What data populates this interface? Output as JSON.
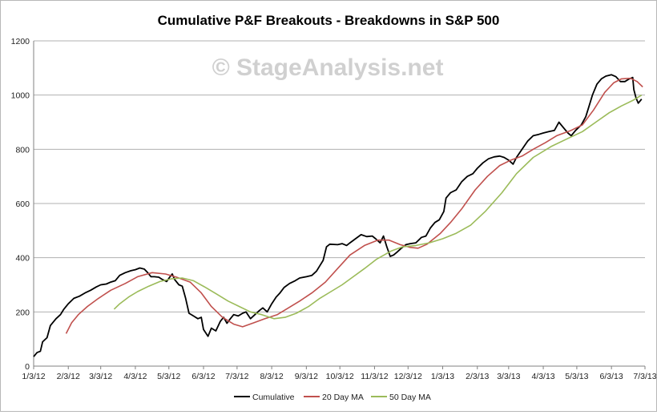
{
  "chart_data": {
    "type": "line",
    "title": "Cumulative P&F Breakouts - Breakdowns in S&P 500",
    "watermark": "© StageAnalysis.net",
    "xlabel": "",
    "ylabel": "",
    "ylim": [
      0,
      1200
    ],
    "yticks": [
      0,
      200,
      400,
      600,
      800,
      1000,
      1200
    ],
    "xlim": [
      "2012-01-03",
      "2013-07-03"
    ],
    "xticks": [
      "1/3/12",
      "2/3/12",
      "3/3/12",
      "4/3/12",
      "5/3/12",
      "6/3/12",
      "7/3/12",
      "8/3/12",
      "9/3/12",
      "10/3/12",
      "11/3/12",
      "12/3/12",
      "1/3/13",
      "2/3/13",
      "3/3/13",
      "4/3/13",
      "5/3/13",
      "6/3/13",
      "7/3/13"
    ],
    "grid": true,
    "legend_position": "bottom",
    "series": [
      {
        "name": "Cumulative",
        "color": "#000000",
        "points": [
          [
            "2012-01-03",
            35
          ],
          [
            "2012-01-06",
            50
          ],
          [
            "2012-01-09",
            55
          ],
          [
            "2012-01-11",
            90
          ],
          [
            "2012-01-15",
            105
          ],
          [
            "2012-01-18",
            150
          ],
          [
            "2012-01-23",
            175
          ],
          [
            "2012-01-27",
            190
          ],
          [
            "2012-01-30",
            210
          ],
          [
            "2012-02-03",
            230
          ],
          [
            "2012-02-08",
            250
          ],
          [
            "2012-02-13",
            258
          ],
          [
            "2012-02-18",
            270
          ],
          [
            "2012-02-23",
            280
          ],
          [
            "2012-02-28",
            292
          ],
          [
            "2012-03-03",
            300
          ],
          [
            "2012-03-08",
            303
          ],
          [
            "2012-03-12",
            310
          ],
          [
            "2012-03-16",
            315
          ],
          [
            "2012-03-20",
            335
          ],
          [
            "2012-03-25",
            345
          ],
          [
            "2012-03-30",
            352
          ],
          [
            "2012-04-03",
            356
          ],
          [
            "2012-04-07",
            362
          ],
          [
            "2012-04-11",
            358
          ],
          [
            "2012-04-14",
            345
          ],
          [
            "2012-04-17",
            330
          ],
          [
            "2012-04-20",
            330
          ],
          [
            "2012-04-24",
            328
          ],
          [
            "2012-04-27",
            320
          ],
          [
            "2012-05-01",
            312
          ],
          [
            "2012-05-04",
            330
          ],
          [
            "2012-05-06",
            340
          ],
          [
            "2012-05-08",
            320
          ],
          [
            "2012-05-12",
            300
          ],
          [
            "2012-05-15",
            295
          ],
          [
            "2012-05-18",
            250
          ],
          [
            "2012-05-21",
            195
          ],
          [
            "2012-05-25",
            185
          ],
          [
            "2012-05-29",
            175
          ],
          [
            "2012-06-01",
            180
          ],
          [
            "2012-06-03",
            135
          ],
          [
            "2012-06-07",
            110
          ],
          [
            "2012-06-10",
            140
          ],
          [
            "2012-06-14",
            130
          ],
          [
            "2012-06-18",
            165
          ],
          [
            "2012-06-21",
            180
          ],
          [
            "2012-06-24",
            158
          ],
          [
            "2012-06-27",
            175
          ],
          [
            "2012-06-30",
            190
          ],
          [
            "2012-07-04",
            185
          ],
          [
            "2012-07-08",
            195
          ],
          [
            "2012-07-11",
            200
          ],
          [
            "2012-07-15",
            175
          ],
          [
            "2012-07-19",
            190
          ],
          [
            "2012-07-23",
            205
          ],
          [
            "2012-07-26",
            215
          ],
          [
            "2012-07-30",
            200
          ],
          [
            "2012-08-03",
            230
          ],
          [
            "2012-08-07",
            255
          ],
          [
            "2012-08-10",
            268
          ],
          [
            "2012-08-14",
            290
          ],
          [
            "2012-08-19",
            305
          ],
          [
            "2012-08-24",
            315
          ],
          [
            "2012-08-28",
            325
          ],
          [
            "2012-09-03",
            330
          ],
          [
            "2012-09-08",
            335
          ],
          [
            "2012-09-12",
            350
          ],
          [
            "2012-09-15",
            370
          ],
          [
            "2012-09-18",
            390
          ],
          [
            "2012-09-21",
            440
          ],
          [
            "2012-09-24",
            450
          ],
          [
            "2012-10-01",
            448
          ],
          [
            "2012-10-05",
            452
          ],
          [
            "2012-10-09",
            445
          ],
          [
            "2012-10-12",
            455
          ],
          [
            "2012-10-17",
            470
          ],
          [
            "2012-10-22",
            485
          ],
          [
            "2012-10-27",
            478
          ],
          [
            "2012-11-01",
            480
          ],
          [
            "2012-11-04",
            470
          ],
          [
            "2012-11-08",
            455
          ],
          [
            "2012-11-11",
            480
          ],
          [
            "2012-11-14",
            440
          ],
          [
            "2012-11-17",
            405
          ],
          [
            "2012-11-20",
            410
          ],
          [
            "2012-11-23",
            420
          ],
          [
            "2012-11-27",
            435
          ],
          [
            "2012-12-01",
            448
          ],
          [
            "2012-12-05",
            452
          ],
          [
            "2012-12-10",
            455
          ],
          [
            "2012-12-15",
            475
          ],
          [
            "2012-12-19",
            480
          ],
          [
            "2012-12-23",
            510
          ],
          [
            "2012-12-27",
            530
          ],
          [
            "2012-12-31",
            540
          ],
          [
            "2013-01-04",
            570
          ],
          [
            "2013-01-06",
            620
          ],
          [
            "2013-01-10",
            640
          ],
          [
            "2013-01-15",
            650
          ],
          [
            "2013-01-20",
            680
          ],
          [
            "2013-01-25",
            700
          ],
          [
            "2013-01-30",
            710
          ],
          [
            "2013-02-03",
            730
          ],
          [
            "2013-02-08",
            750
          ],
          [
            "2013-02-13",
            765
          ],
          [
            "2013-02-18",
            772
          ],
          [
            "2013-02-23",
            775
          ],
          [
            "2013-02-27",
            770
          ],
          [
            "2013-03-03",
            760
          ],
          [
            "2013-03-07",
            745
          ],
          [
            "2013-03-10",
            770
          ],
          [
            "2013-03-15",
            800
          ],
          [
            "2013-03-20",
            830
          ],
          [
            "2013-03-25",
            850
          ],
          [
            "2013-03-30",
            855
          ],
          [
            "2013-04-03",
            860
          ],
          [
            "2013-04-08",
            865
          ],
          [
            "2013-04-13",
            870
          ],
          [
            "2013-04-17",
            900
          ],
          [
            "2013-04-21",
            880
          ],
          [
            "2013-04-25",
            860
          ],
          [
            "2013-04-28",
            850
          ],
          [
            "2013-05-02",
            870
          ],
          [
            "2013-05-07",
            890
          ],
          [
            "2013-05-11",
            920
          ],
          [
            "2013-05-14",
            960
          ],
          [
            "2013-05-17",
            1000
          ],
          [
            "2013-05-21",
            1040
          ],
          [
            "2013-05-25",
            1060
          ],
          [
            "2013-05-29",
            1070
          ],
          [
            "2013-06-03",
            1075
          ],
          [
            "2013-06-07",
            1068
          ],
          [
            "2013-06-11",
            1050
          ],
          [
            "2013-06-15",
            1050
          ],
          [
            "2013-06-19",
            1060
          ],
          [
            "2013-06-22",
            1065
          ],
          [
            "2013-06-23",
            1020
          ],
          [
            "2013-06-25",
            990
          ],
          [
            "2013-06-27",
            970
          ],
          [
            "2013-06-30",
            985
          ]
        ]
      },
      {
        "name": "20 Day MA",
        "color": "#c0504d",
        "points": [
          [
            "2012-02-01",
            120
          ],
          [
            "2012-02-06",
            160
          ],
          [
            "2012-02-12",
            190
          ],
          [
            "2012-02-20",
            220
          ],
          [
            "2012-03-01",
            250
          ],
          [
            "2012-03-12",
            280
          ],
          [
            "2012-03-25",
            305
          ],
          [
            "2012-04-05",
            330
          ],
          [
            "2012-04-18",
            345
          ],
          [
            "2012-04-30",
            340
          ],
          [
            "2012-05-10",
            328
          ],
          [
            "2012-05-22",
            310
          ],
          [
            "2012-06-01",
            270
          ],
          [
            "2012-06-10",
            220
          ],
          [
            "2012-06-20",
            180
          ],
          [
            "2012-06-30",
            155
          ],
          [
            "2012-07-08",
            145
          ],
          [
            "2012-07-18",
            160
          ],
          [
            "2012-07-28",
            175
          ],
          [
            "2012-08-08",
            190
          ],
          [
            "2012-08-18",
            215
          ],
          [
            "2012-08-28",
            240
          ],
          [
            "2012-09-08",
            270
          ],
          [
            "2012-09-20",
            310
          ],
          [
            "2012-10-01",
            360
          ],
          [
            "2012-10-12",
            410
          ],
          [
            "2012-10-25",
            445
          ],
          [
            "2012-11-06",
            465
          ],
          [
            "2012-11-16",
            465
          ],
          [
            "2012-11-26",
            448
          ],
          [
            "2012-12-05",
            438
          ],
          [
            "2012-12-12",
            435
          ],
          [
            "2012-12-20",
            450
          ],
          [
            "2013-01-01",
            490
          ],
          [
            "2013-01-10",
            530
          ],
          [
            "2013-01-20",
            580
          ],
          [
            "2013-02-01",
            650
          ],
          [
            "2013-02-12",
            700
          ],
          [
            "2013-02-23",
            740
          ],
          [
            "2013-03-05",
            760
          ],
          [
            "2013-03-15",
            775
          ],
          [
            "2013-03-25",
            800
          ],
          [
            "2013-04-05",
            825
          ],
          [
            "2013-04-15",
            850
          ],
          [
            "2013-04-28",
            870
          ],
          [
            "2013-05-08",
            890
          ],
          [
            "2013-05-18",
            945
          ],
          [
            "2013-05-28",
            1010
          ],
          [
            "2013-06-05",
            1045
          ],
          [
            "2013-06-12",
            1060
          ],
          [
            "2013-06-20",
            1062
          ],
          [
            "2013-06-26",
            1050
          ],
          [
            "2013-07-01",
            1030
          ]
        ]
      },
      {
        "name": "50 Day MA",
        "color": "#9bbb59",
        "points": [
          [
            "2012-03-15",
            210
          ],
          [
            "2012-03-20",
            230
          ],
          [
            "2012-03-28",
            255
          ],
          [
            "2012-04-05",
            275
          ],
          [
            "2012-04-15",
            295
          ],
          [
            "2012-04-25",
            312
          ],
          [
            "2012-05-05",
            322
          ],
          [
            "2012-05-15",
            325
          ],
          [
            "2012-05-25",
            315
          ],
          [
            "2012-06-05",
            290
          ],
          [
            "2012-06-15",
            265
          ],
          [
            "2012-06-25",
            240
          ],
          [
            "2012-07-05",
            220
          ],
          [
            "2012-07-15",
            200
          ],
          [
            "2012-07-25",
            190
          ],
          [
            "2012-08-05",
            175
          ],
          [
            "2012-08-15",
            180
          ],
          [
            "2012-08-25",
            195
          ],
          [
            "2012-09-05",
            220
          ],
          [
            "2012-09-15",
            250
          ],
          [
            "2012-09-25",
            275
          ],
          [
            "2012-10-05",
            300
          ],
          [
            "2012-10-15",
            330
          ],
          [
            "2012-10-25",
            360
          ],
          [
            "2012-11-05",
            395
          ],
          [
            "2012-11-18",
            425
          ],
          [
            "2012-11-28",
            440
          ],
          [
            "2012-12-10",
            445
          ],
          [
            "2012-12-22",
            455
          ],
          [
            "2013-01-03",
            470
          ],
          [
            "2013-01-15",
            490
          ],
          [
            "2013-01-28",
            520
          ],
          [
            "2013-02-10",
            570
          ],
          [
            "2013-02-25",
            640
          ],
          [
            "2013-03-10",
            710
          ],
          [
            "2013-03-25",
            770
          ],
          [
            "2013-04-10",
            810
          ],
          [
            "2013-04-25",
            840
          ],
          [
            "2013-05-08",
            865
          ],
          [
            "2013-05-20",
            900
          ],
          [
            "2013-06-01",
            935
          ],
          [
            "2013-06-12",
            960
          ],
          [
            "2013-06-22",
            980
          ],
          [
            "2013-06-30",
            1000
          ]
        ]
      }
    ]
  }
}
